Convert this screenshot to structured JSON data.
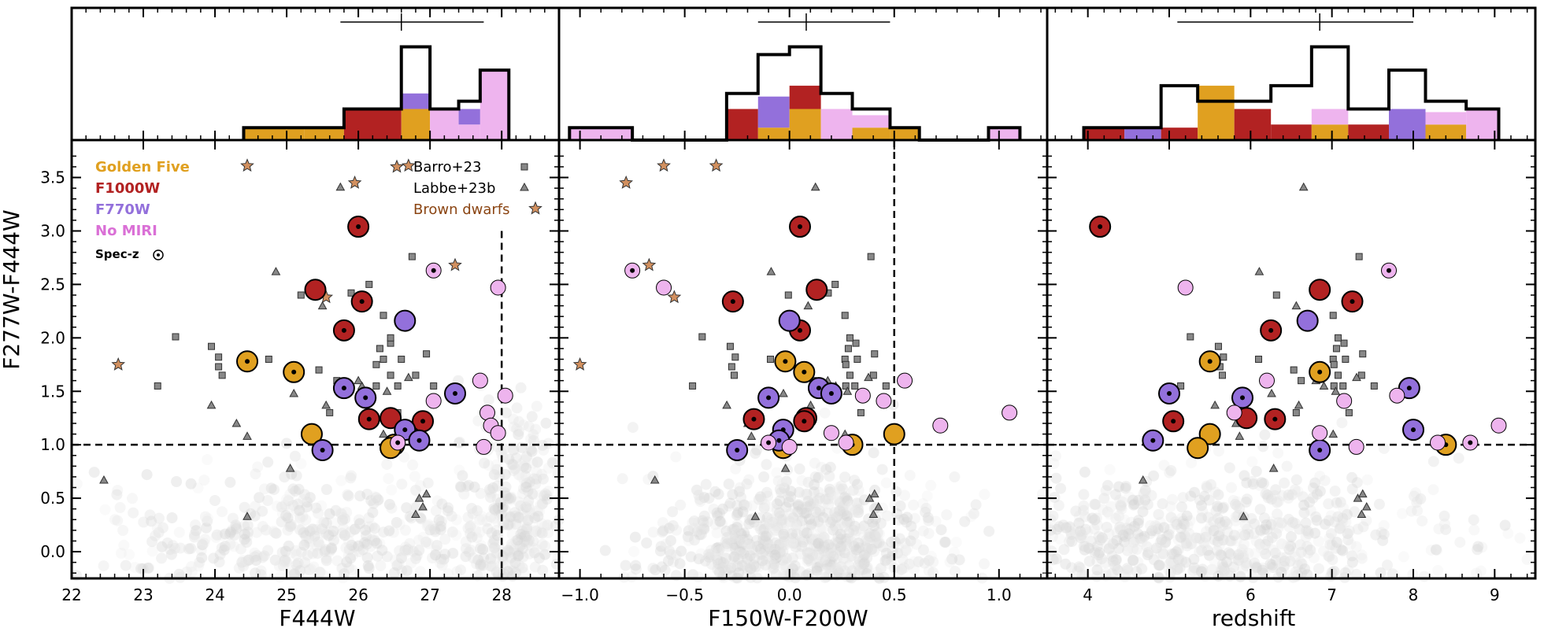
{
  "colors": {
    "golden": "#E0A020",
    "f1000w": "#B22222",
    "f770w": "#9370DB",
    "nomiri": "#EEB4EE",
    "star": "#D2905F",
    "grey": "#808080"
  },
  "chart_data": {
    "type": "scatter",
    "panels": [
      {
        "xlabel": "F444W",
        "ylabel": "F277W-F444W",
        "xlim": [
          22,
          28.8
        ],
        "ylim": [
          -0.25,
          3.85
        ],
        "xticks": [
          "22",
          "23",
          "24",
          "25",
          "26",
          "27",
          "28"
        ],
        "yticks": [
          "0.0",
          "0.5",
          "1.0",
          "1.5",
          "2.0",
          "2.5",
          "3.0",
          "3.5"
        ],
        "hlines": [
          1.0
        ],
        "vlines": [
          28.0
        ],
        "legend": {
          "groups": [
            "Golden Five",
            "F1000W",
            "F770W",
            "No MIRI",
            "Spec-z"
          ],
          "samples": [
            "Barro+23",
            "Labbe+23b",
            "Brown dwarfs"
          ]
        },
        "histogram": {
          "edges": [
            24.4,
            25.25,
            25.8,
            26.6,
            27.0,
            27.4,
            27.7,
            28.1
          ],
          "total": [
            0.08,
            0.08,
            0.2,
            0.6,
            0.2,
            0.25,
            0.45
          ],
          "stacks": [
            [
              [
                "golden",
                0.08
              ]
            ],
            [
              [
                "golden",
                0.08
              ]
            ],
            [
              [
                "f1000w",
                0.2
              ]
            ],
            [
              [
                "golden",
                0.2
              ],
              [
                "f770w",
                0.1
              ]
            ],
            [
              [
                "nomiri",
                0.2
              ]
            ],
            [
              [
                "nomiri",
                0.1
              ],
              [
                "f770w",
                0.1
              ]
            ],
            [
              [
                "nomiri",
                0.45
              ]
            ]
          ],
          "errorbar": {
            "center": 26.6,
            "low": 25.75,
            "high": 27.75
          }
        }
      },
      {
        "xlabel": "F150W-F200W",
        "xlim": [
          -1.1,
          1.23
        ],
        "ylim": [
          -0.25,
          3.85
        ],
        "xticks": [
          "−1.0",
          "−0.5",
          "0.0",
          "0.5",
          "1.0"
        ],
        "hlines": [
          1.0
        ],
        "vlines": [
          0.5
        ],
        "histogram": {
          "edges": [
            -1.05,
            -0.75,
            -0.3,
            -0.15,
            0.0,
            0.15,
            0.3,
            0.48,
            0.62,
            0.95,
            1.1
          ],
          "total": [
            0.08,
            0,
            0.3,
            0.55,
            0.6,
            0.3,
            0.2,
            0.08,
            0,
            0.08
          ],
          "stacks": [
            [
              [
                "nomiri",
                0.08
              ]
            ],
            [],
            [
              [
                "f1000w",
                0.2
              ]
            ],
            [
              [
                "golden",
                0.08
              ],
              [
                "f770w",
                0.2
              ]
            ],
            [
              [
                "golden",
                0.2
              ],
              [
                "f1000w",
                0.15
              ]
            ],
            [
              [
                "nomiri",
                0.2
              ]
            ],
            [
              [
                "golden",
                0.08
              ],
              [
                "nomiri",
                0.08
              ]
            ],
            [
              [
                "golden",
                0.08
              ]
            ],
            [],
            [
              [
                "nomiri",
                0.08
              ]
            ]
          ],
          "errorbar": {
            "center": 0.08,
            "low": -0.15,
            "high": 0.48
          }
        }
      },
      {
        "xlabel": "redshift",
        "xlim": [
          3.5,
          9.5
        ],
        "ylim": [
          -0.25,
          3.85
        ],
        "xticks": [
          "4",
          "5",
          "6",
          "7",
          "8",
          "9"
        ],
        "hlines": [
          1.0
        ],
        "vlines": [],
        "histogram": {
          "edges": [
            3.95,
            4.45,
            4.9,
            5.35,
            5.8,
            6.25,
            6.75,
            7.2,
            7.7,
            8.15,
            8.65,
            9.05
          ],
          "total": [
            0.08,
            0.08,
            0.35,
            0.25,
            0.25,
            0.35,
            0.6,
            0.2,
            0.45,
            0.25,
            0.2
          ],
          "stacks": [
            [
              [
                "f1000w",
                0.08
              ]
            ],
            [
              [
                "f770w",
                0.08
              ]
            ],
            [
              [
                "f1000w",
                0.08
              ]
            ],
            [
              [
                "golden",
                0.35
              ]
            ],
            [
              [
                "f1000w",
                0.2
              ]
            ],
            [
              [
                "f1000w",
                0.1
              ]
            ],
            [
              [
                "golden",
                0.1
              ],
              [
                "nomiri",
                0.1
              ]
            ],
            [
              [
                "f1000w",
                0.1
              ]
            ],
            [
              [
                "f770w",
                0.2
              ]
            ],
            [
              [
                "golden",
                0.1
              ],
              [
                "nomiri",
                0.08
              ]
            ],
            [
              [
                "nomiri",
                0.2
              ]
            ]
          ],
          "errorbar": {
            "center": 6.85,
            "low": 5.1,
            "high": 8.0
          }
        }
      }
    ],
    "objects": [
      {
        "group": "golden",
        "specz": true,
        "f444w": 24.45,
        "f150_f200": -0.02,
        "z": 5.5,
        "color": 1.78
      },
      {
        "group": "golden",
        "specz": true,
        "f444w": 25.1,
        "f150_f200": 0.07,
        "z": 6.85,
        "color": 1.68
      },
      {
        "group": "golden",
        "specz": false,
        "f444w": 25.35,
        "f150_f200": 0.5,
        "z": 5.5,
        "color": 1.1
      },
      {
        "group": "golden",
        "specz": true,
        "f444w": 26.5,
        "f150_f200": 0.3,
        "z": 8.4,
        "color": 1.0
      },
      {
        "group": "golden",
        "specz": false,
        "f444w": 26.45,
        "f150_f200": -0.03,
        "z": 5.35,
        "color": 0.97
      },
      {
        "group": "f1000w",
        "specz": true,
        "f444w": 26.0,
        "f150_f200": 0.05,
        "z": 4.15,
        "color": 3.04
      },
      {
        "group": "f1000w",
        "specz": false,
        "f444w": 25.4,
        "f150_f200": 0.13,
        "z": 6.85,
        "color": 2.45
      },
      {
        "group": "f1000w",
        "specz": true,
        "f444w": 26.05,
        "f150_f200": -0.27,
        "z": 7.25,
        "color": 2.34
      },
      {
        "group": "f1000w",
        "specz": true,
        "f444w": 25.8,
        "f150_f200": 0.05,
        "z": 6.25,
        "color": 2.07
      },
      {
        "group": "f1000w",
        "specz": true,
        "f444w": 26.15,
        "f150_f200": -0.17,
        "z": 6.3,
        "color": 1.24
      },
      {
        "group": "f1000w",
        "specz": false,
        "f444w": 26.45,
        "f150_f200": 0.08,
        "z": 5.95,
        "color": 1.25
      },
      {
        "group": "f1000w",
        "specz": true,
        "f444w": 26.9,
        "f150_f200": 0.07,
        "z": 5.05,
        "color": 1.22
      },
      {
        "group": "f770w",
        "specz": false,
        "f444w": 26.65,
        "f150_f200": 0.0,
        "z": 6.7,
        "color": 2.16
      },
      {
        "group": "f770w",
        "specz": true,
        "f444w": 25.8,
        "f150_f200": 0.14,
        "z": 7.95,
        "color": 1.53
      },
      {
        "group": "f770w",
        "specz": true,
        "f444w": 27.35,
        "f150_f200": 0.2,
        "z": 5.0,
        "color": 1.48
      },
      {
        "group": "f770w",
        "specz": true,
        "f444w": 26.1,
        "f150_f200": -0.1,
        "z": 5.9,
        "color": 1.44
      },
      {
        "group": "f770w",
        "specz": true,
        "f444w": 26.65,
        "f150_f200": -0.03,
        "z": 8.0,
        "color": 1.14
      },
      {
        "group": "f770w",
        "specz": true,
        "f444w": 26.85,
        "f150_f200": -0.05,
        "z": 4.8,
        "color": 1.04
      },
      {
        "group": "f770w",
        "specz": true,
        "f444w": 25.5,
        "f150_f200": -0.25,
        "z": 6.85,
        "color": 0.95
      },
      {
        "group": "nomiri",
        "specz": true,
        "f444w": 27.05,
        "f150_f200": -0.75,
        "z": 7.7,
        "color": 2.63
      },
      {
        "group": "nomiri",
        "specz": false,
        "f444w": 27.95,
        "f150_f200": -0.6,
        "z": 5.2,
        "color": 2.47
      },
      {
        "group": "nomiri",
        "specz": false,
        "f444w": 27.7,
        "f150_f200": 0.55,
        "z": 6.2,
        "color": 1.6
      },
      {
        "group": "nomiri",
        "specz": false,
        "f444w": 28.05,
        "f150_f200": 0.35,
        "z": 7.8,
        "color": 1.46
      },
      {
        "group": "nomiri",
        "specz": false,
        "f444w": 27.05,
        "f150_f200": 0.45,
        "z": 7.15,
        "color": 1.41
      },
      {
        "group": "nomiri",
        "specz": false,
        "f444w": 27.8,
        "f150_f200": 1.05,
        "z": 5.8,
        "color": 1.3
      },
      {
        "group": "nomiri",
        "specz": false,
        "f444w": 27.85,
        "f150_f200": 0.72,
        "z": 9.05,
        "color": 1.18
      },
      {
        "group": "nomiri",
        "specz": false,
        "f444w": 27.95,
        "f150_f200": 0.2,
        "z": 6.85,
        "color": 1.11
      },
      {
        "group": "nomiri",
        "specz": false,
        "f444w": 26.55,
        "f150_f200": 0.27,
        "z": 8.3,
        "color": 1.02
      },
      {
        "group": "nomiri",
        "specz": true,
        "f444w": 26.55,
        "f150_f200": -0.1,
        "z": 8.7,
        "color": 1.02
      },
      {
        "group": "nomiri",
        "specz": false,
        "f444w": 27.75,
        "f150_f200": 0.0,
        "z": 7.3,
        "color": 0.98
      }
    ],
    "barro": [
      [
        23.2,
        1.55
      ],
      [
        23.45,
        2.01
      ],
      [
        23.95,
        1.92
      ],
      [
        24.05,
        1.73
      ],
      [
        24.05,
        1.82
      ],
      [
        24.1,
        1.65
      ],
      [
        24.75,
        1.8
      ],
      [
        25.2,
        2.4
      ],
      [
        25.45,
        1.7
      ],
      [
        25.6,
        1.3
      ],
      [
        25.9,
        2.42
      ],
      [
        25.7,
        1.6
      ],
      [
        26.3,
        1.9
      ],
      [
        26.35,
        1.8
      ],
      [
        26.45,
        1.95
      ],
      [
        26.6,
        1.8
      ],
      [
        26.25,
        1.55
      ],
      [
        26.45,
        1.65
      ],
      [
        26.8,
        1.65
      ],
      [
        26.95,
        1.85
      ],
      [
        27.05,
        1.55
      ],
      [
        26.45,
        2.0
      ],
      [
        26.55,
        1.3
      ],
      [
        26.15,
        2.5
      ],
      [
        26.75,
        2.76
      ],
      [
        26.35,
        2.21
      ],
      [
        26.25,
        1.75
      ],
      [
        26.55,
        1.55
      ]
    ],
    "labbe": [
      [
        22.45,
        0.67
      ],
      [
        23.95,
        1.37
      ],
      [
        24.3,
        1.2
      ],
      [
        24.45,
        1.08
      ],
      [
        24.45,
        0.33
      ],
      [
        24.85,
        2.62
      ],
      [
        25.05,
        0.78
      ],
      [
        25.1,
        1.48
      ],
      [
        25.55,
        1.37
      ],
      [
        25.75,
        3.41
      ],
      [
        26.05,
        1.55
      ],
      [
        26.35,
        1.1
      ],
      [
        26.7,
        1.63
      ],
      [
        26.85,
        0.5
      ],
      [
        26.9,
        0.42
      ],
      [
        26.95,
        0.54
      ],
      [
        26.8,
        0.35
      ],
      [
        26.0,
        1.6
      ],
      [
        25.5,
        2.3
      ],
      [
        26.4,
        1.5
      ]
    ],
    "brown_dwarfs": [
      [
        22.65,
        1.75
      ],
      [
        24.45,
        3.61
      ],
      [
        25.55,
        2.38
      ],
      [
        25.95,
        3.45
      ],
      [
        26.7,
        3.61
      ],
      [
        27.35,
        2.68
      ]
    ],
    "brown_dwarfs_color": [
      -1.0,
      -0.6,
      -0.55,
      -0.78,
      -0.35,
      -0.67
    ]
  }
}
